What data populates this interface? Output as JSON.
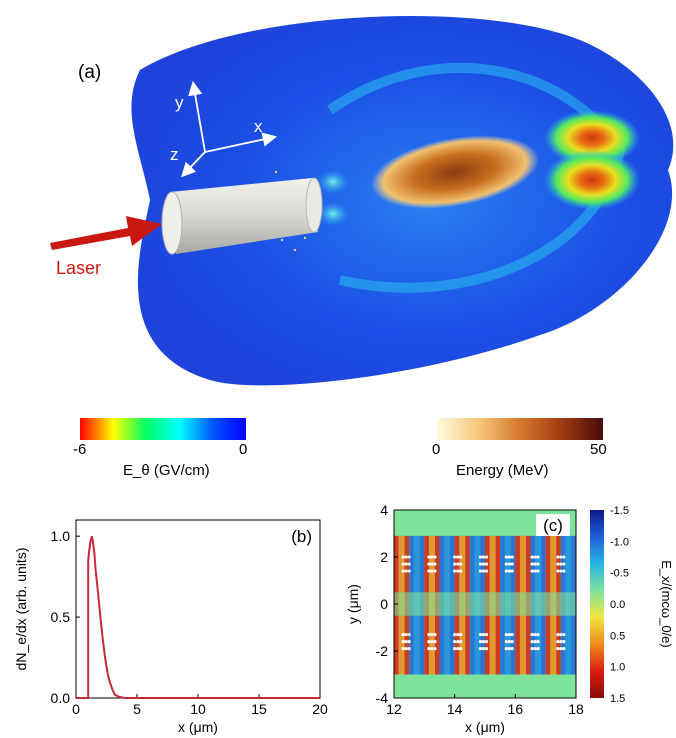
{
  "panel_a": {
    "label": "(a)",
    "axes": {
      "x": "x",
      "y": "y",
      "z": "z"
    },
    "laser_label": "Laser",
    "colorbar_field": {
      "min": "-6",
      "max": "0",
      "label": "E_θ (GV/cm)",
      "colors": [
        "#ff0000",
        "#ffff00",
        "#00ff66",
        "#00ffff",
        "#0055ff",
        "#0000ff"
      ]
    },
    "colorbar_energy": {
      "min": "0",
      "max": "50",
      "label": "Energy (MeV)",
      "colors": [
        "#fffbe0",
        "#f5c87a",
        "#d6782a",
        "#a03c12",
        "#4a0b0b"
      ]
    }
  },
  "chart_data": [
    {
      "type": "line",
      "label": "(b)",
      "xlabel": "x (μm)",
      "ylabel": "dN_e/dx (arb. units)",
      "xlim": [
        0,
        20
      ],
      "ylim": [
        0,
        1.1
      ],
      "xticks": [
        0,
        5,
        10,
        15,
        20
      ],
      "yticks": [
        "0.0",
        "0.5",
        "1.0"
      ],
      "color": "#c8283c",
      "series": [
        {
          "x": [
            0,
            0.9,
            1.0,
            1.0,
            1.1,
            1.2,
            1.3,
            1.4,
            1.5,
            1.6,
            1.8,
            2.0,
            2.2,
            2.4,
            2.6,
            2.8,
            3.0,
            3.2,
            3.5,
            4.0,
            20
          ],
          "y": [
            0,
            0,
            0,
            0.85,
            0.92,
            0.97,
            1.0,
            0.96,
            0.9,
            0.8,
            0.65,
            0.5,
            0.36,
            0.24,
            0.15,
            0.09,
            0.05,
            0.02,
            0.008,
            0,
            0
          ]
        }
      ]
    },
    {
      "type": "heatmap",
      "label": "(c)",
      "xlabel": "x (μm)",
      "ylabel": "y (μm)",
      "xlim": [
        12,
        18
      ],
      "ylim": [
        -4,
        4
      ],
      "xticks": [
        12,
        14,
        16,
        18
      ],
      "yticks": [
        4,
        2,
        0,
        -2,
        -4
      ],
      "colorbar": {
        "label": "E_x/(mcω_0/e)",
        "ticks": [
          "-1.5",
          "-1.0",
          "-0.5",
          "0.0",
          "0.5",
          "1.0",
          "1.5"
        ],
        "colors": [
          "#0a1a8c",
          "#1f5fd9",
          "#25b7e6",
          "#7ee39a",
          "#f2e43c",
          "#f08a1c",
          "#d81e10",
          "#8c0a0a"
        ]
      }
    }
  ]
}
